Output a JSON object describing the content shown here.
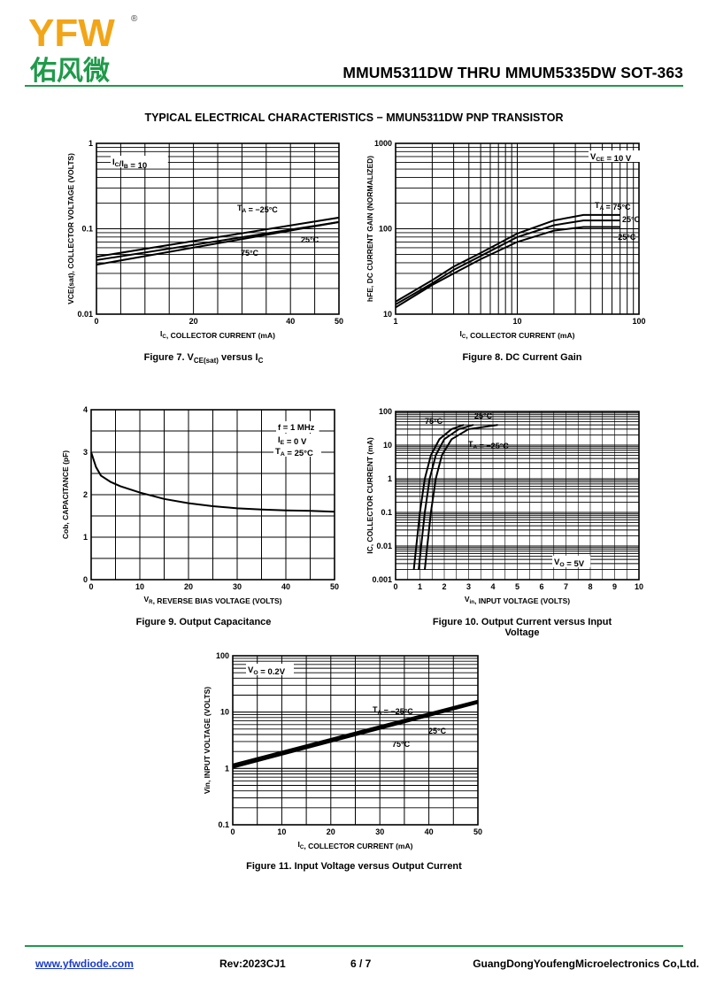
{
  "header": {
    "logo_text": "YFW",
    "logo_reg": "®",
    "logo_cn": "佑风微",
    "title": "MMUM5311DW THRU MMUM5335DW SOT-363",
    "brand_color": "#1f9a4a",
    "logo_color": "#f2a516"
  },
  "section_title": "TYPICAL ELECTRICAL CHARACTERISTICS − MMUN5311DW PNP TRANSISTOR",
  "figures": {
    "fig7": {
      "caption_pre": "Figure 7. V",
      "caption_sub": "CE(sat)",
      "caption_mid": " versus I",
      "caption_sub2": "C"
    },
    "fig8": {
      "caption": "Figure 8. DC Current Gain"
    },
    "fig9": {
      "caption": "Figure 9. Output Capacitance"
    },
    "fig10": {
      "caption_line1": "Figure 10. Output Current versus Input",
      "caption_line2": "Voltage"
    },
    "fig11": {
      "caption": "Figure 11. Input Voltage versus Output Current"
    }
  },
  "chart_data": [
    {
      "id": "fig7",
      "type": "line",
      "xlabel": "I_C, COLLECTOR CURRENT (mA)",
      "ylabel": "VCE(sat), COLLECTOR VOLTAGE (VOLTS)",
      "xlim": [
        0,
        50
      ],
      "ylim": [
        0.01,
        1
      ],
      "yscale": "log",
      "x_ticks": [
        0,
        20,
        40,
        50
      ],
      "y_ticks": [
        0.01,
        0.1,
        1
      ],
      "annotation": "I_C/I_B = 10",
      "series": [
        {
          "name": "T_A = −25°C",
          "x": [
            0,
            50
          ],
          "y": [
            0.047,
            0.135
          ]
        },
        {
          "name": "25°C",
          "x": [
            0,
            50
          ],
          "y": [
            0.043,
            0.12
          ]
        },
        {
          "name": "75°C",
          "x": [
            0,
            50
          ],
          "y": [
            0.038,
            0.12
          ]
        }
      ]
    },
    {
      "id": "fig8",
      "type": "line",
      "xlabel": "I_C, COLLECTOR CURRENT (mA)",
      "ylabel": "hFE, DC CURRENT GAIN (NORMALIZED)",
      "xlim": [
        1,
        100
      ],
      "ylim": [
        10,
        1000
      ],
      "xscale": "log",
      "yscale": "log",
      "x_ticks": [
        1,
        10,
        100
      ],
      "y_ticks": [
        10,
        100,
        1000
      ],
      "annotation": "V_CE = 10 V",
      "series": [
        {
          "name": "T_A = 75°C",
          "x": [
            1,
            2,
            3,
            5,
            10,
            20,
            35,
            70
          ],
          "y": [
            14,
            25,
            36,
            52,
            88,
            125,
            145,
            145
          ]
        },
        {
          "name": "25°C",
          "x": [
            1,
            2,
            3,
            5,
            10,
            20,
            35,
            70
          ],
          "y": [
            13,
            23,
            33,
            48,
            80,
            110,
            125,
            125
          ]
        },
        {
          "name": "−25°C",
          "x": [
            1,
            2,
            3,
            5,
            10,
            20,
            35,
            70
          ],
          "y": [
            12,
            22,
            30,
            44,
            70,
            95,
            105,
            105
          ]
        }
      ]
    },
    {
      "id": "fig9",
      "type": "line",
      "xlabel": "V_R, REVERSE BIAS VOLTAGE (VOLTS)",
      "ylabel": "Cob, CAPACITANCE (pF)",
      "xlim": [
        0,
        50
      ],
      "ylim": [
        0,
        4
      ],
      "x_ticks": [
        0,
        10,
        20,
        30,
        40,
        50
      ],
      "y_ticks": [
        0,
        1,
        2,
        3,
        4
      ],
      "annotation": [
        "f = 1 MHz",
        "I_E = 0 V",
        "T_A = 25°C"
      ],
      "series": [
        {
          "name": "",
          "x": [
            0,
            1,
            2,
            4,
            6,
            10,
            15,
            20,
            25,
            30,
            35,
            40,
            45,
            50
          ],
          "y": [
            3.0,
            2.65,
            2.45,
            2.3,
            2.2,
            2.05,
            1.9,
            1.8,
            1.73,
            1.68,
            1.65,
            1.63,
            1.62,
            1.6
          ]
        }
      ]
    },
    {
      "id": "fig10",
      "type": "line",
      "xlabel": "V_in, INPUT VOLTAGE (VOLTS)",
      "ylabel": "IC, COLLECTOR CURRENT (mA)",
      "xlim": [
        0,
        10
      ],
      "ylim": [
        0.001,
        100
      ],
      "yscale": "log",
      "x_ticks": [
        0,
        1,
        2,
        3,
        4,
        5,
        6,
        7,
        8,
        9,
        10
      ],
      "y_ticks": [
        0.001,
        0.01,
        0.1,
        1,
        10,
        100
      ],
      "annotation": "V_O = 5V",
      "series": [
        {
          "name": "75°C",
          "x": [
            0.75,
            0.85,
            1.0,
            1.2,
            1.45,
            1.8,
            2.3,
            2.8
          ],
          "y": [
            0.002,
            0.01,
            0.1,
            1,
            5,
            15,
            30,
            40
          ]
        },
        {
          "name": "25°C",
          "x": [
            0.95,
            1.05,
            1.2,
            1.4,
            1.65,
            2.0,
            2.6,
            3.2
          ],
          "y": [
            0.002,
            0.01,
            0.1,
            1,
            5,
            15,
            30,
            40
          ]
        },
        {
          "name": "T_A = −25°C",
          "x": [
            1.2,
            1.3,
            1.45,
            1.65,
            1.9,
            2.3,
            3.0,
            4.2
          ],
          "y": [
            0.002,
            0.01,
            0.1,
            1,
            5,
            15,
            30,
            40
          ]
        }
      ]
    },
    {
      "id": "fig11",
      "type": "line",
      "xlabel": "I_C, COLLECTOR CURRENT (mA)",
      "ylabel": "Vin, INPUT VOLTAGE (VOLTS)",
      "xlim": [
        0,
        50
      ],
      "ylim": [
        0.1,
        100
      ],
      "yscale": "log",
      "x_ticks": [
        0,
        10,
        20,
        30,
        40,
        50
      ],
      "y_ticks": [
        0.1,
        1,
        10,
        100
      ],
      "annotation": "V_O = 0.2V",
      "series": [
        {
          "name": "T_A = −25°C",
          "x": [
            0,
            50
          ],
          "y": [
            1.18,
            16.0
          ]
        },
        {
          "name": "25°C",
          "x": [
            0,
            50
          ],
          "y": [
            1.1,
            15.3
          ]
        },
        {
          "name": "75°C",
          "x": [
            0,
            50
          ],
          "y": [
            1.03,
            14.5
          ]
        }
      ]
    }
  ],
  "footer": {
    "website": "www.yfwdiode.com",
    "rev": "Rev:2023CJ1",
    "page": "6 / 7",
    "company": "GuangDongYoufengMicroelectronics Co,Ltd."
  }
}
